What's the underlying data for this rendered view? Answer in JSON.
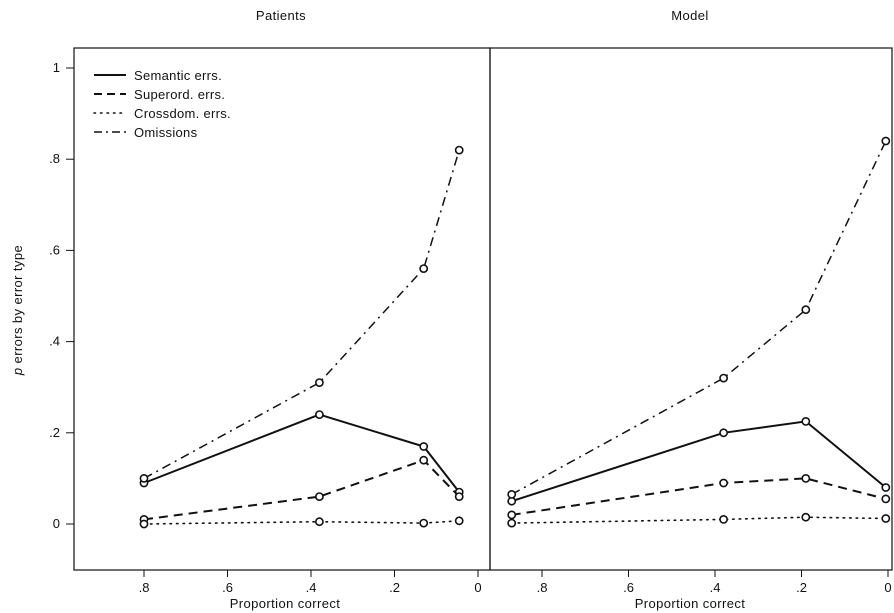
{
  "chart_data": [
    {
      "type": "line",
      "title": "Patients",
      "xlabel": "Proportion correct",
      "ylabel": "p errors by error type",
      "ylabel_italic_prefix": "p",
      "ylabel_rest": " errors by error type",
      "xlim": [
        0.9,
        0.0
      ],
      "ylim": [
        -0.08,
        1.05
      ],
      "x_reversed": true,
      "x_ticks": [
        0.8,
        0.6,
        0.4,
        0.2,
        0
      ],
      "x_tick_labels": [
        ".8",
        ".6",
        ".4",
        ".2",
        "0"
      ],
      "y_ticks": [
        0,
        0.2,
        0.4,
        0.6,
        0.8,
        1
      ],
      "y_tick_labels": [
        "0",
        ".2",
        ".4",
        ".6",
        ".8",
        "1"
      ],
      "grid": false,
      "legend_position": "top-left",
      "series": [
        {
          "name": "Semantic errs.",
          "style": "solid",
          "x": [
            0.8,
            0.38,
            0.13,
            0.045
          ],
          "y": [
            0.09,
            0.24,
            0.17,
            0.07
          ]
        },
        {
          "name": "Superord. errs.",
          "style": "dashed",
          "x": [
            0.8,
            0.38,
            0.13,
            0.045
          ],
          "y": [
            0.01,
            0.06,
            0.14,
            0.06
          ]
        },
        {
          "name": "Crossdom. errs.",
          "style": "dotted",
          "x": [
            0.8,
            0.38,
            0.13,
            0.045
          ],
          "y": [
            0.0,
            0.005,
            0.002,
            0.007
          ]
        },
        {
          "name": "Omissions",
          "style": "dashdot",
          "x": [
            0.8,
            0.38,
            0.13,
            0.045
          ],
          "y": [
            0.1,
            0.31,
            0.56,
            0.82
          ]
        }
      ]
    },
    {
      "type": "line",
      "title": "Model",
      "xlabel": "Proportion correct",
      "xlim": [
        0.9,
        0.0
      ],
      "ylim": [
        -0.08,
        1.05
      ],
      "x_reversed": true,
      "x_ticks": [
        0.8,
        0.6,
        0.4,
        0.2,
        0
      ],
      "x_tick_labels": [
        ".8",
        ".6",
        ".4",
        ".2",
        "0"
      ],
      "grid": false,
      "series": [
        {
          "name": "Semantic errs.",
          "style": "solid",
          "x": [
            0.87,
            0.38,
            0.19,
            0.005
          ],
          "y": [
            0.05,
            0.2,
            0.225,
            0.08
          ]
        },
        {
          "name": "Superord. errs.",
          "style": "dashed",
          "x": [
            0.87,
            0.38,
            0.19,
            0.005
          ],
          "y": [
            0.02,
            0.09,
            0.1,
            0.055
          ]
        },
        {
          "name": "Crossdom. errs.",
          "style": "dotted",
          "x": [
            0.87,
            0.38,
            0.19,
            0.005
          ],
          "y": [
            0.002,
            0.01,
            0.015,
            0.012
          ]
        },
        {
          "name": "Omissions",
          "style": "dashdot",
          "x": [
            0.87,
            0.38,
            0.19,
            0.005
          ],
          "y": [
            0.065,
            0.32,
            0.47,
            0.84
          ]
        }
      ]
    }
  ]
}
